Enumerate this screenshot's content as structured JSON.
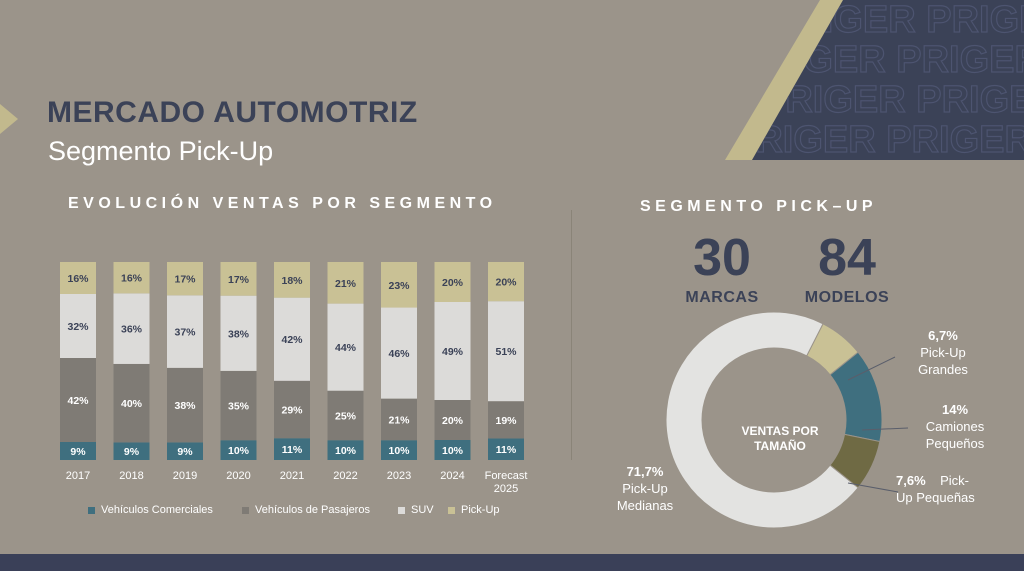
{
  "header": {
    "title": "MERCADO AUTOMOTRIZ",
    "subtitle": "Segmento Pick-Up",
    "watermark": "PRIGER PRIGER PRIGER PRIGER"
  },
  "colors": {
    "background": "#9b948a",
    "navy": "#3b4257",
    "gold": "#c2b98d",
    "comerciales": "#3f6f7f",
    "pasajeros": "#7f7b75",
    "suv": "#dcdbd9",
    "pickup": "#c9c195",
    "pickup_grandes": "#c9c195",
    "camiones_pequenos": "#3f6f7f",
    "pickup_pequenas": "#6f6a44",
    "pickup_medianas": "#e3e3e1"
  },
  "chart_data": [
    {
      "type": "bar",
      "stacked": true,
      "title": "EVOLUCIÓN VENTAS POR SEGMENTO",
      "categories": [
        "2017",
        "2018",
        "2019",
        "2020",
        "2021",
        "2022",
        "2023",
        "2024",
        "Forecast 2025"
      ],
      "category_labels": [
        [
          "2017"
        ],
        [
          "2018"
        ],
        [
          "2019"
        ],
        [
          "2020"
        ],
        [
          "2021"
        ],
        [
          "2022"
        ],
        [
          "2023"
        ],
        [
          "2024"
        ],
        [
          "Forecast",
          "2025"
        ]
      ],
      "series": [
        {
          "name": "Vehículos Comerciales",
          "values": [
            9,
            9,
            9,
            10,
            11,
            10,
            10,
            10,
            11
          ]
        },
        {
          "name": "Vehículos de Pasajeros",
          "values": [
            42,
            40,
            38,
            35,
            29,
            25,
            21,
            20,
            19
          ]
        },
        {
          "name": "SUV",
          "values": [
            32,
            36,
            37,
            38,
            42,
            44,
            46,
            49,
            51
          ]
        },
        {
          "name": "Pick-Up",
          "values": [
            16,
            16,
            17,
            17,
            18,
            21,
            23,
            20,
            20
          ]
        }
      ],
      "legend_position": "bottom",
      "data_labels_suffix": "%"
    },
    {
      "type": "pie",
      "donut": true,
      "title": "SEGMENTO PICK–UP",
      "center_label": [
        "VENTAS POR",
        "TAMAÑO"
      ],
      "slices": [
        {
          "name": "Pick-Up Grandes",
          "value": 6.7,
          "label": "6,7%",
          "text": [
            "Pick-Up",
            "Grandes"
          ]
        },
        {
          "name": "Camiones Pequeños",
          "value": 14,
          "label": "14%",
          "text": [
            "Camiones",
            "Pequeños"
          ]
        },
        {
          "name": "Pick-Up Pequeñas",
          "value": 7.6,
          "label": "7,6%",
          "text": [
            "Pick-",
            "Up Pequeñas"
          ]
        },
        {
          "name": "Pick-Up Medianas",
          "value": 71.7,
          "label": "71,7%",
          "text": [
            "Pick-Up",
            "Medianas"
          ]
        }
      ]
    }
  ],
  "stats": {
    "marcas_value": "30",
    "marcas_label": "MARCAS",
    "modelos_value": "84",
    "modelos_label": "MODELOS"
  }
}
